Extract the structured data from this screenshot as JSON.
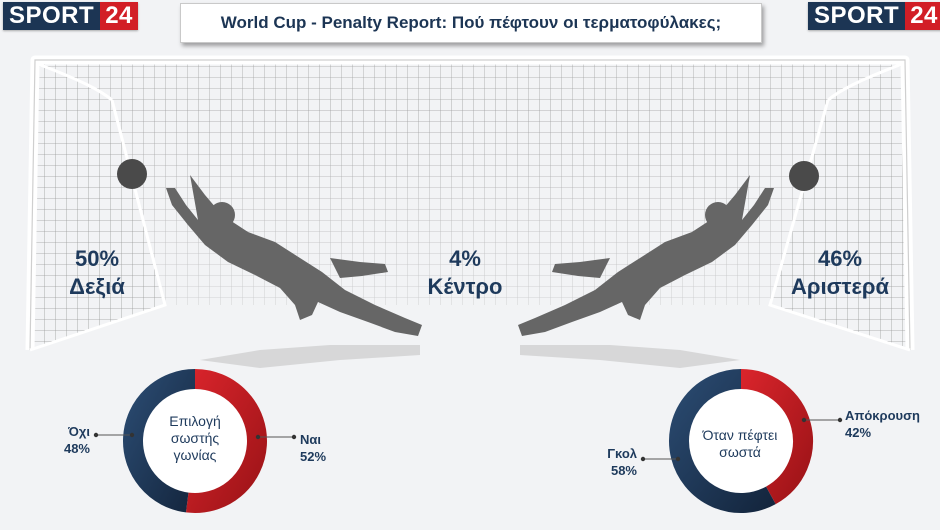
{
  "header": {
    "title": "World Cup - Penalty Report: Πού πέφτουν οι τερματοφύλακες;",
    "logo_left": {
      "word": "SPORT",
      "num": "24"
    },
    "logo_right": {
      "word": "SPORT",
      "num": "24"
    }
  },
  "stats": {
    "right": {
      "value": "50%",
      "label": "Δεξιά"
    },
    "center": {
      "value": "4%",
      "label": "Κέντρο"
    },
    "left": {
      "value": "46%",
      "label": "Αριστερά"
    }
  },
  "colors": {
    "navy": "#1c3554",
    "red": "#c81e23",
    "grey": "#555555"
  },
  "chart_data": [
    {
      "type": "pie",
      "center_label": [
        "Επιλογή",
        "σωστής",
        "γωνίας"
      ],
      "categories": [
        "Ναι",
        "Όχι"
      ],
      "values": [
        52,
        48
      ],
      "value_labels": [
        "52%",
        "48%"
      ],
      "colors": [
        "#c81e23",
        "#1c3554"
      ]
    },
    {
      "type": "pie",
      "center_label": [
        "Όταν πέφτει",
        "σωστά"
      ],
      "categories": [
        "Απόκρουση",
        "Γκολ"
      ],
      "values": [
        42,
        58
      ],
      "value_labels": [
        "42%",
        "58%"
      ],
      "colors": [
        "#c81e23",
        "#1c3554"
      ]
    }
  ]
}
